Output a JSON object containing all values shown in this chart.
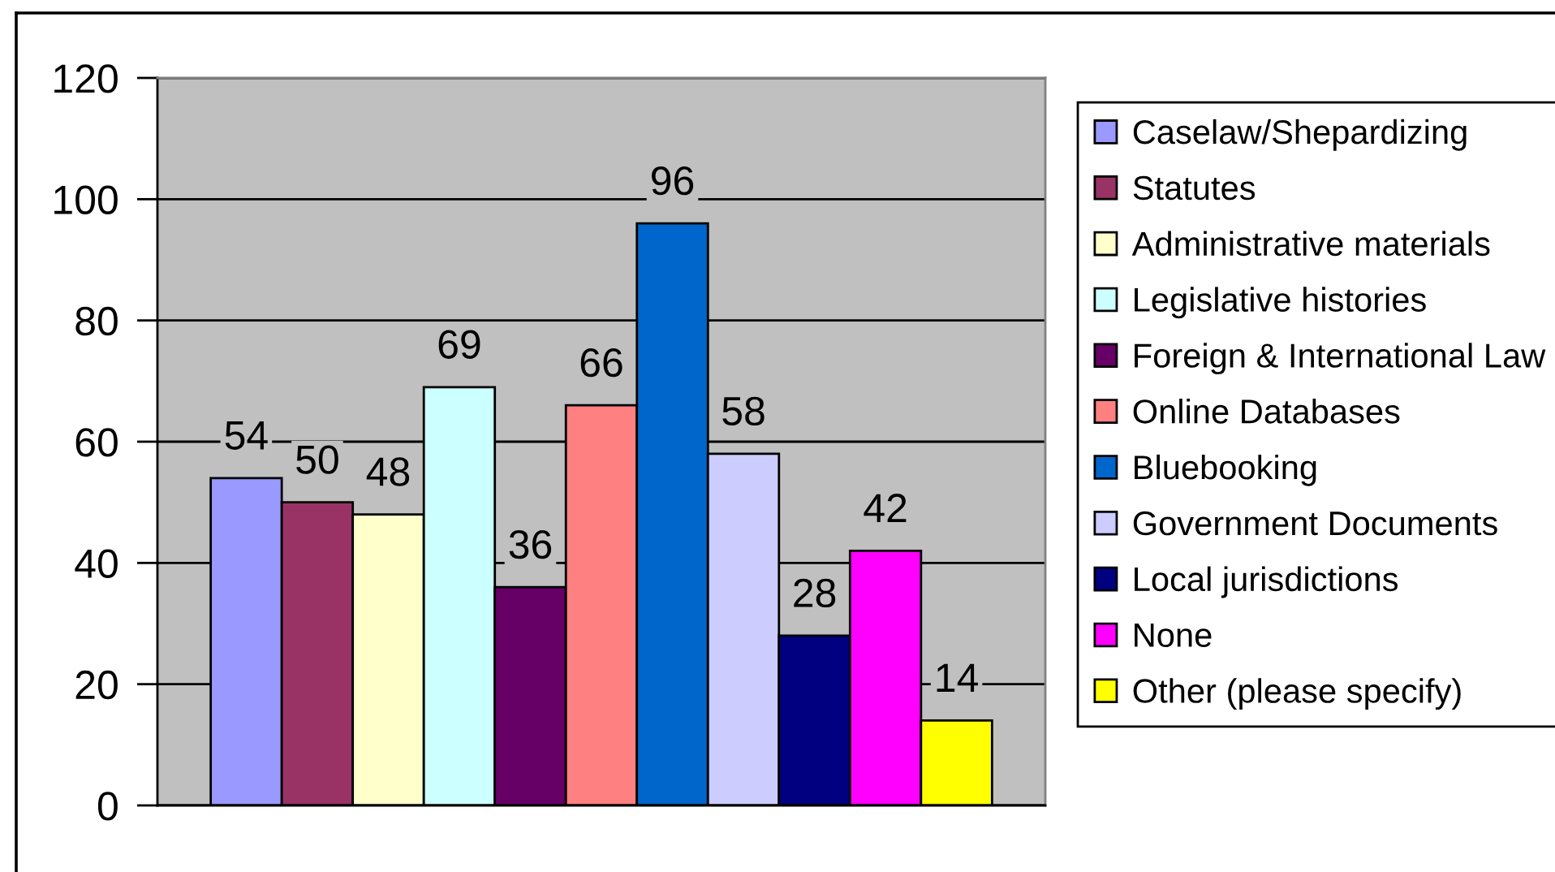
{
  "chart_data": {
    "type": "bar",
    "categories": [
      null
    ],
    "series": [
      {
        "name": "Caselaw/Shepardizing",
        "color": "#9999ff",
        "values": [
          54
        ]
      },
      {
        "name": "Statutes",
        "color": "#993366",
        "values": [
          50
        ]
      },
      {
        "name": "Administrative materials",
        "color": "#ffffcc",
        "values": [
          48
        ]
      },
      {
        "name": "Legislative histories",
        "color": "#ccffff",
        "values": [
          69
        ]
      },
      {
        "name": "Foreign & International Law",
        "color": "#660066",
        "values": [
          36
        ]
      },
      {
        "name": "Online Databases",
        "color": "#ff8080",
        "values": [
          66
        ]
      },
      {
        "name": "Bluebooking",
        "color": "#0066cc",
        "values": [
          96
        ]
      },
      {
        "name": "Government Documents",
        "color": "#ccccff",
        "values": [
          58
        ]
      },
      {
        "name": "Local jurisdictions",
        "color": "#000080",
        "values": [
          28
        ]
      },
      {
        "name": "None",
        "color": "#ff00ff",
        "values": [
          42
        ]
      },
      {
        "name": "Other (please specify)",
        "color": "#ffff00",
        "values": [
          14
        ]
      }
    ],
    "ylim": [
      0,
      120
    ],
    "yticks": [
      0,
      20,
      40,
      60,
      80,
      100,
      120
    ],
    "grid": "y",
    "legend": "right",
    "data_labels": true,
    "tick_labels": "y"
  }
}
